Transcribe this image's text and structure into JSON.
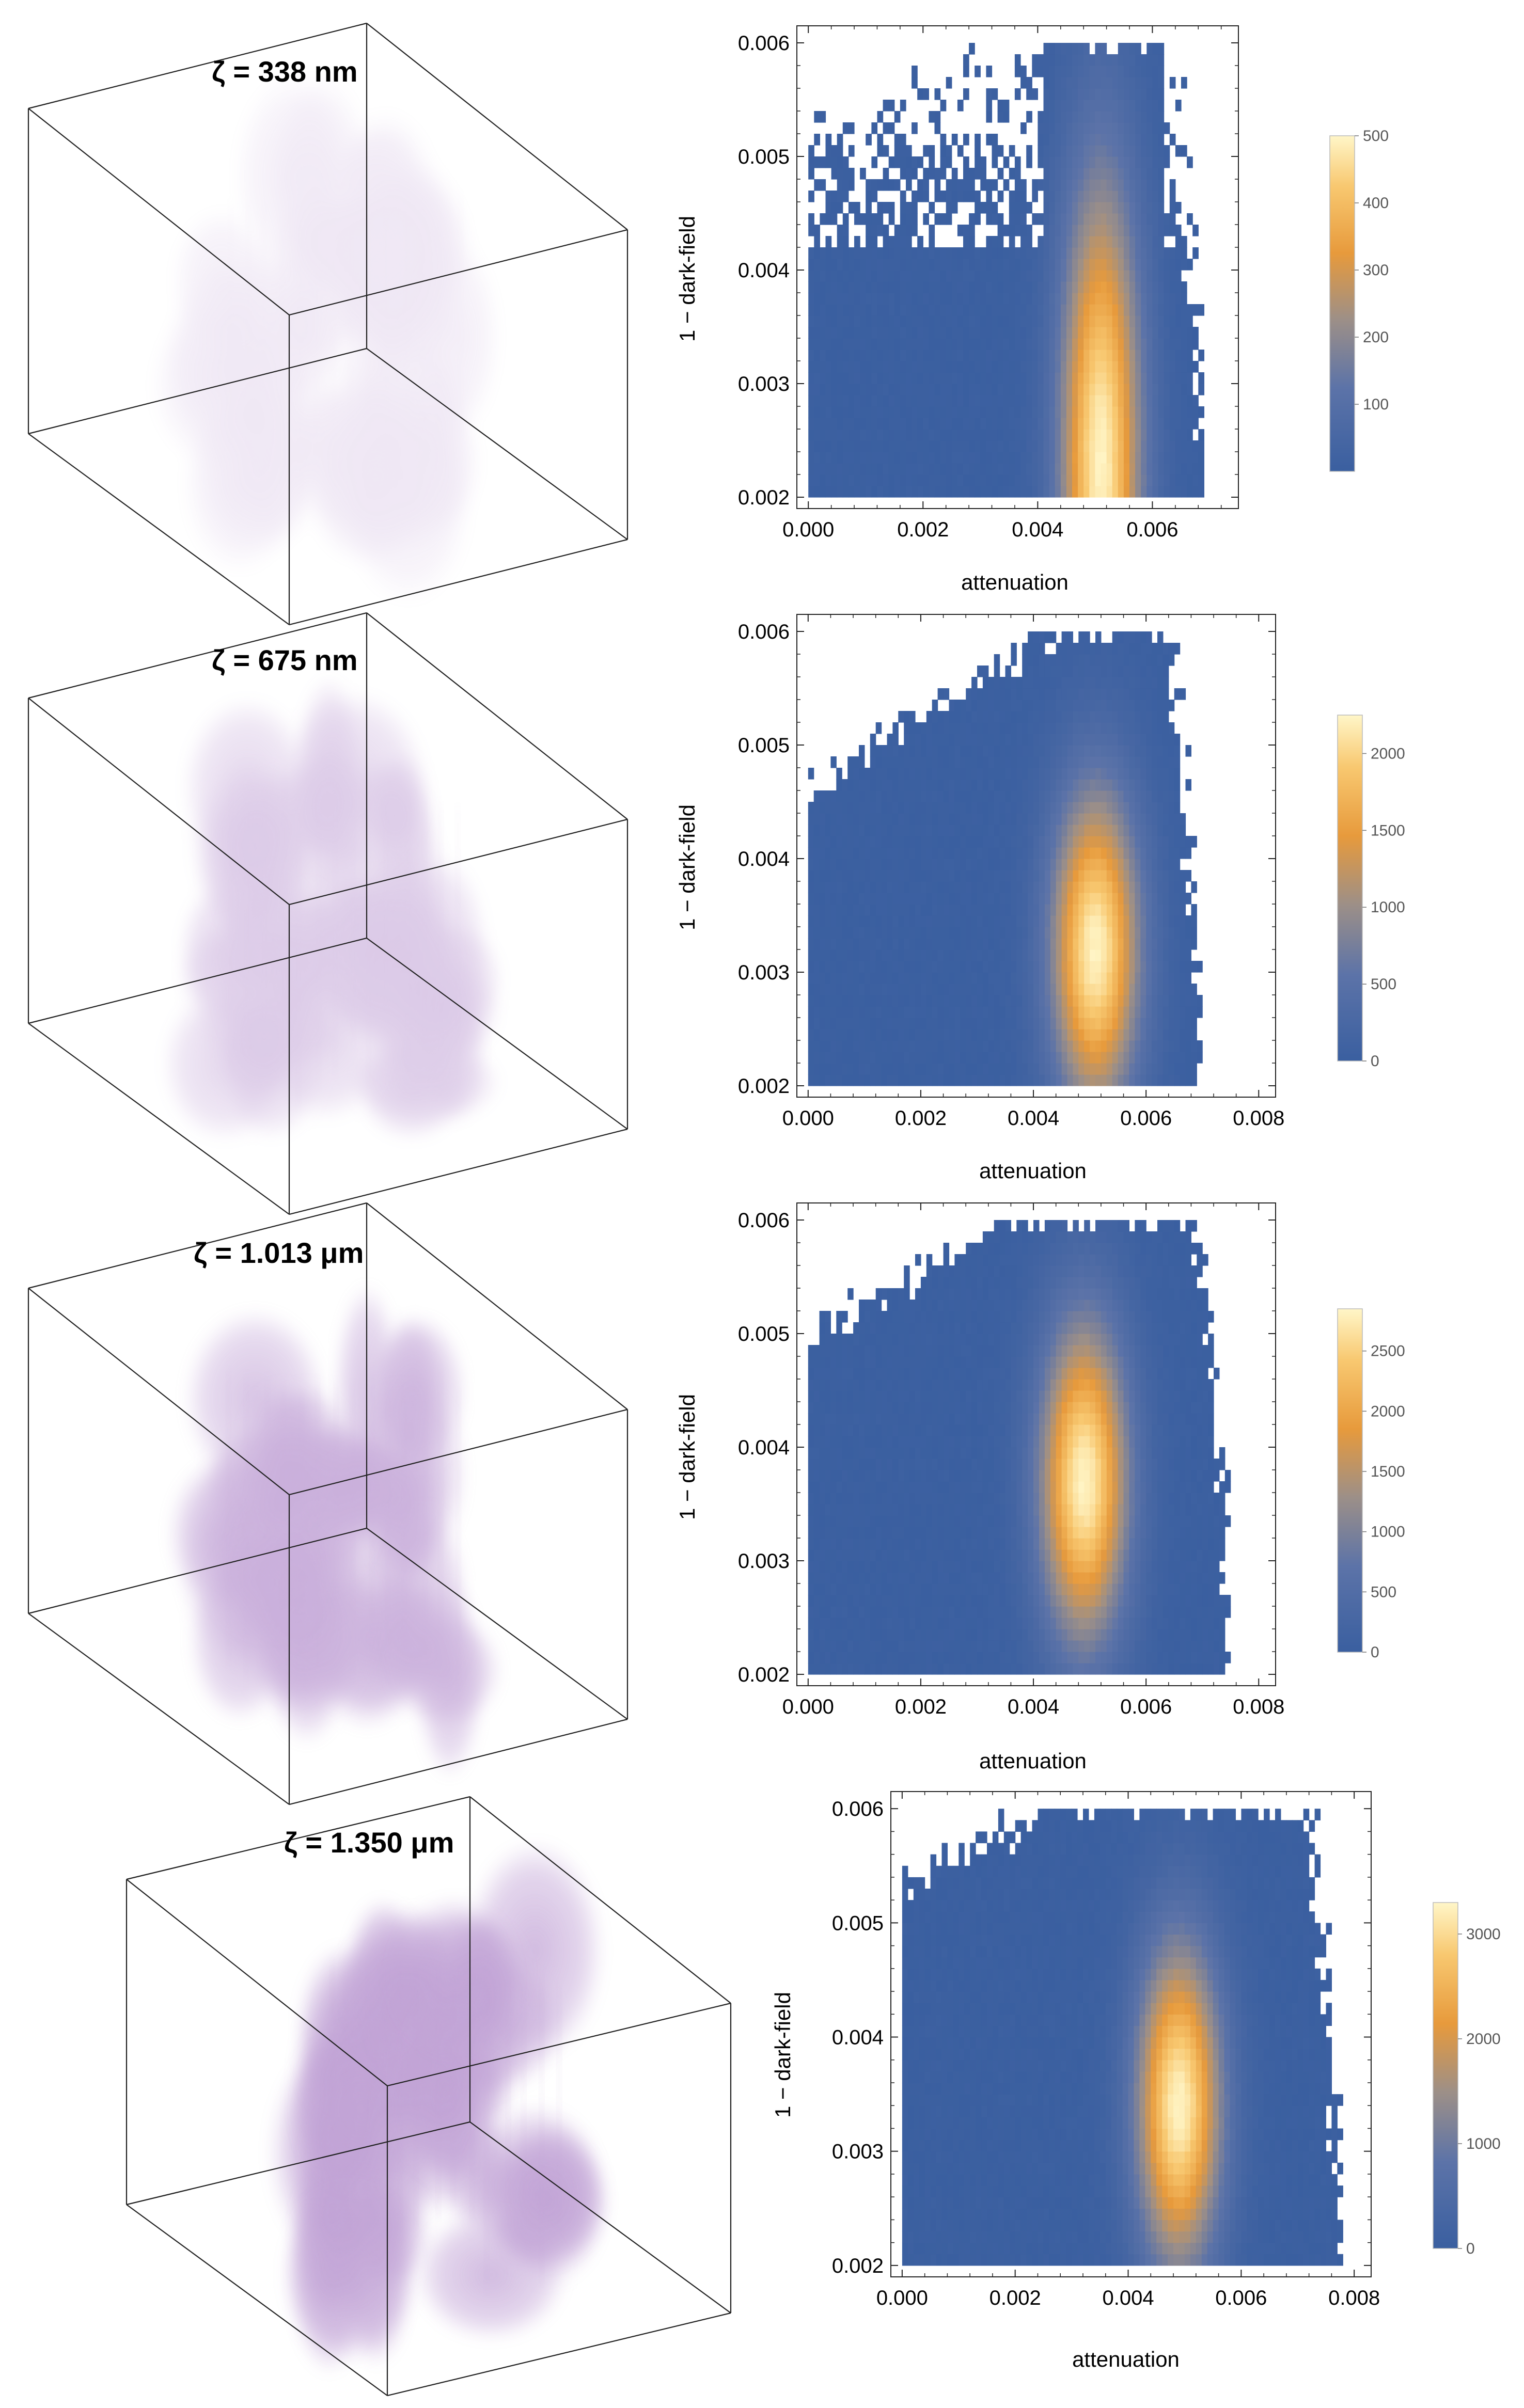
{
  "figure": {
    "description_free": true,
    "rows": 4
  },
  "chart_data": [
    {
      "type": "heatmap",
      "title": "ζ = 338 nm",
      "xlabel": "attenuation",
      "ylabel": "1 − dark-field",
      "xlim": [
        -0.0002,
        0.0075
      ],
      "ylim": [
        0.0019,
        0.00615
      ],
      "xticks": [
        "0.000",
        "0.002",
        "0.004",
        "0.006"
      ],
      "yticks": [
        "0.002",
        "0.003",
        "0.004",
        "0.005",
        "0.006"
      ],
      "bins": {
        "x0": 0.0,
        "x1": 0.0069,
        "y0": 0.002,
        "y1": 0.006,
        "dx": 0.0001,
        "dy": 0.0001
      },
      "peak": {
        "x": 0.0051,
        "y": 0.0023,
        "sx": 0.00045,
        "sy": 0.0016,
        "value": 500
      },
      "colorbar": {
        "min": 0,
        "max": 500,
        "ticks": [
          "100",
          "200",
          "300",
          "400",
          "500"
        ],
        "tick_values": [
          100,
          200,
          300,
          400,
          500
        ]
      },
      "frontier": [
        [
          0.0,
          0.0052
        ],
        [
          0.004,
          0.006
        ]
      ],
      "sparse": true,
      "cube_label": "ζ = 338 nm",
      "cube_density": 0.18
    },
    {
      "type": "heatmap",
      "title": "ζ = 675 nm",
      "xlabel": "attenuation",
      "ylabel": "1 − dark-field",
      "xlim": [
        -0.0002,
        0.0083
      ],
      "ylim": [
        0.0019,
        0.00615
      ],
      "xticks": [
        "0.000",
        "0.002",
        "0.004",
        "0.006",
        "0.008"
      ],
      "yticks": [
        "0.002",
        "0.003",
        "0.004",
        "0.005",
        "0.006"
      ],
      "bins": {
        "x0": 0.0,
        "x1": 0.007,
        "y0": 0.002,
        "y1": 0.006,
        "dx": 0.0001,
        "dy": 0.0001
      },
      "peak": {
        "x": 0.0051,
        "y": 0.0032,
        "sx": 0.0005,
        "sy": 0.0009,
        "value": 2250
      },
      "colorbar": {
        "min": 0,
        "max": 2250,
        "ticks": [
          "0",
          "500",
          "1000",
          "1500",
          "2000"
        ],
        "tick_values": [
          0,
          500,
          1000,
          1500,
          2000
        ]
      },
      "frontier": [
        [
          0.0,
          0.0046
        ],
        [
          0.0045,
          0.006
        ]
      ],
      "sparse": false,
      "cube_label": "ζ = 675 nm",
      "cube_density": 0.4
    },
    {
      "type": "heatmap",
      "title": "ζ = 1.013 μm",
      "xlabel": "attenuation",
      "ylabel": "1 − dark-field",
      "xlim": [
        -0.0002,
        0.0083
      ],
      "ylim": [
        0.0019,
        0.00615
      ],
      "xticks": [
        "0.000",
        "0.002",
        "0.004",
        "0.006",
        "0.008"
      ],
      "yticks": [
        "0.002",
        "0.003",
        "0.004",
        "0.005",
        "0.006"
      ],
      "bins": {
        "x0": 0.0,
        "x1": 0.0075,
        "y0": 0.002,
        "y1": 0.006,
        "dx": 0.0001,
        "dy": 0.0001
      },
      "peak": {
        "x": 0.0049,
        "y": 0.0037,
        "sx": 0.0005,
        "sy": 0.0009,
        "value": 2850
      },
      "colorbar": {
        "min": 0,
        "max": 2850,
        "ticks": [
          "0",
          "500",
          "1000",
          "1500",
          "2000",
          "2500"
        ],
        "tick_values": [
          0,
          500,
          1000,
          1500,
          2000,
          2500
        ]
      },
      "frontier": [
        [
          0.0,
          0.0049
        ],
        [
          0.0035,
          0.006
        ]
      ],
      "sparse": false,
      "cube_label": "ζ = 1.013 μm",
      "cube_density": 0.6
    },
    {
      "type": "heatmap",
      "title": "ζ = 1.350 μm",
      "xlabel": "attenuation",
      "ylabel": "1 − dark-field",
      "xlim": [
        -0.0002,
        0.0083
      ],
      "ylim": [
        0.0019,
        0.00615
      ],
      "xticks": [
        "0.000",
        "0.002",
        "0.004",
        "0.006",
        "0.008"
      ],
      "yticks": [
        "0.002",
        "0.003",
        "0.004",
        "0.005",
        "0.006"
      ],
      "bins": {
        "x0": 0.0,
        "x1": 0.0078,
        "y0": 0.002,
        "y1": 0.006,
        "dx": 0.0001,
        "dy": 0.0001
      },
      "peak": {
        "x": 0.0049,
        "y": 0.0034,
        "sx": 0.00048,
        "sy": 0.0009,
        "value": 3300
      },
      "colorbar": {
        "min": 0,
        "max": 3300,
        "ticks": [
          "0",
          "1000",
          "2000",
          "3000"
        ],
        "tick_values": [
          0,
          1000,
          2000,
          3000
        ]
      },
      "frontier": [
        [
          0.0,
          0.0053
        ],
        [
          0.0028,
          0.006
        ]
      ],
      "sparse": false,
      "cube_label": "ζ = 1.350 μm",
      "cube_density": 0.7
    }
  ],
  "colors": {
    "low": "#3a5fa0",
    "mid": "#8c8fa0",
    "orange": "#f0a030",
    "high": "#fff6c8",
    "cloud": "#a77cc4",
    "frame": "#222222"
  }
}
